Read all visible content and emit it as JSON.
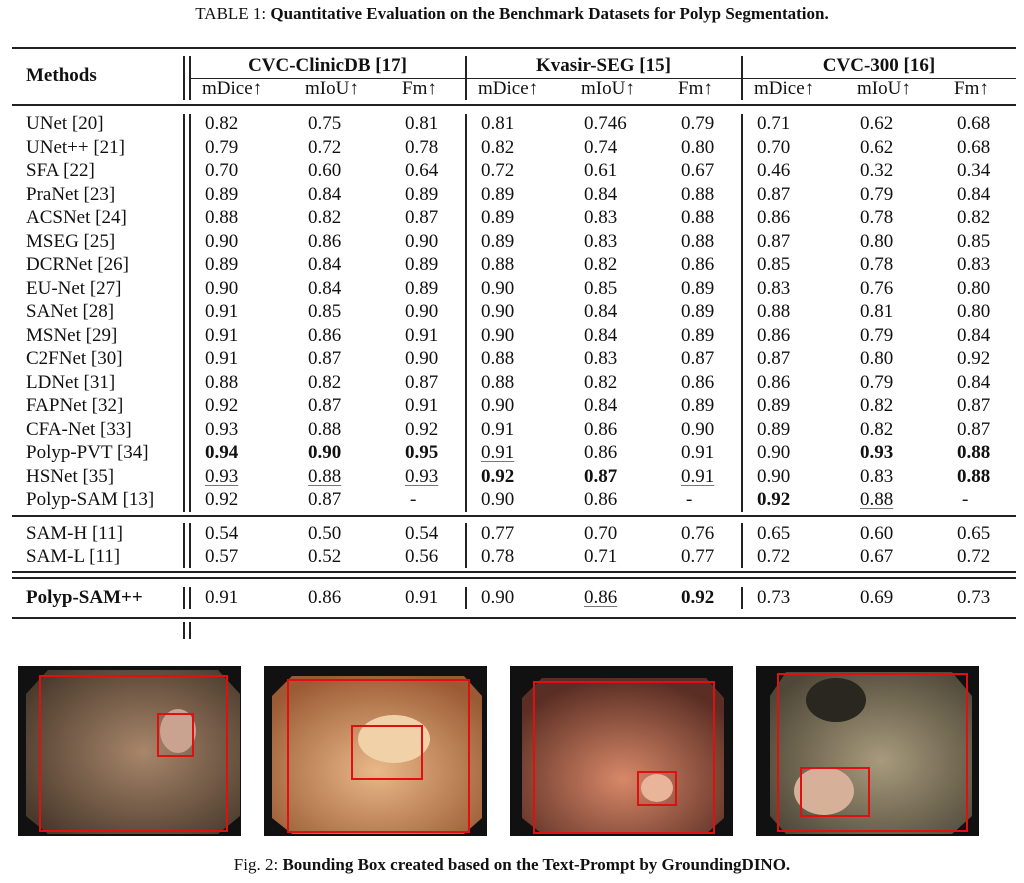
{
  "table": {
    "caption_prefix": "TABLE 1:",
    "caption_title": "Quantitative Evaluation on the Benchmark Datasets for Polyp Segmentation.",
    "methods_header": "Methods",
    "groups": [
      "CVC-ClinicDB [17]",
      "Kvasir-SEG [15]",
      "CVC-300 [16]"
    ],
    "metrics": [
      "mDice↑",
      "mIoU↑",
      "Fm↑"
    ],
    "rows": [
      {
        "method": "UNet [20]",
        "values": [
          "0.82",
          "0.75",
          "0.81",
          "0.81",
          "0.746",
          "0.79",
          "0.71",
          "0.62",
          "0.68"
        ],
        "style": [
          "",
          "",
          "",
          "",
          "",
          "",
          "",
          "",
          ""
        ]
      },
      {
        "method": "UNet++ [21]",
        "values": [
          "0.79",
          "0.72",
          "0.78",
          "0.82",
          "0.74",
          "0.80",
          "0.70",
          "0.62",
          "0.68"
        ],
        "style": [
          "",
          "",
          "",
          "",
          "",
          "",
          "",
          "",
          ""
        ]
      },
      {
        "method": "SFA [22]",
        "values": [
          "0.70",
          "0.60",
          "0.64",
          "0.72",
          "0.61",
          "0.67",
          "0.46",
          "0.32",
          "0.34"
        ],
        "style": [
          "",
          "",
          "",
          "",
          "",
          "",
          "",
          "",
          ""
        ]
      },
      {
        "method": "PraNet [23]",
        "values": [
          "0.89",
          "0.84",
          "0.89",
          "0.89",
          "0.84",
          "0.88",
          "0.87",
          "0.79",
          "0.84"
        ],
        "style": [
          "",
          "",
          "",
          "",
          "",
          "",
          "",
          "",
          ""
        ]
      },
      {
        "method": "ACSNet [24]",
        "values": [
          "0.88",
          "0.82",
          "0.87",
          "0.89",
          "0.83",
          "0.88",
          "0.86",
          "0.78",
          "0.82"
        ],
        "style": [
          "",
          "",
          "",
          "",
          "",
          "",
          "",
          "",
          ""
        ]
      },
      {
        "method": "MSEG [25]",
        "values": [
          "0.90",
          "0.86",
          "0.90",
          "0.89",
          "0.83",
          "0.88",
          "0.87",
          "0.80",
          "0.85"
        ],
        "style": [
          "",
          "",
          "",
          "",
          "",
          "",
          "",
          "",
          ""
        ]
      },
      {
        "method": "DCRNet [26]",
        "values": [
          "0.89",
          "0.84",
          "0.89",
          "0.88",
          "0.82",
          "0.86",
          "0.85",
          "0.78",
          "0.83"
        ],
        "style": [
          "",
          "",
          "",
          "",
          "",
          "",
          "",
          "",
          ""
        ]
      },
      {
        "method": "EU-Net [27]",
        "values": [
          "0.90",
          "0.84",
          "0.89",
          "0.90",
          "0.85",
          "0.89",
          "0.83",
          "0.76",
          "0.80"
        ],
        "style": [
          "",
          "",
          "",
          "",
          "",
          "",
          "",
          "",
          ""
        ]
      },
      {
        "method": "SANet [28]",
        "values": [
          "0.91",
          "0.85",
          "0.90",
          "0.90",
          "0.84",
          "0.89",
          "0.88",
          "0.81",
          "0.80"
        ],
        "style": [
          "",
          "",
          "",
          "",
          "",
          "",
          "",
          "",
          ""
        ]
      },
      {
        "method": "MSNet [29]",
        "values": [
          "0.91",
          "0.86",
          "0.91",
          "0.90",
          "0.84",
          "0.89",
          "0.86",
          "0.79",
          "0.84"
        ],
        "style": [
          "",
          "",
          "",
          "",
          "",
          "",
          "",
          "",
          ""
        ]
      },
      {
        "method": "C2FNet [30]",
        "values": [
          "0.91",
          "0.87",
          "0.90",
          "0.88",
          "0.83",
          "0.87",
          "0.87",
          "0.80",
          "0.92"
        ],
        "style": [
          "",
          "",
          "",
          "",
          "",
          "",
          "",
          "",
          ""
        ]
      },
      {
        "method": "LDNet [31]",
        "values": [
          "0.88",
          "0.82",
          "0.87",
          "0.88",
          "0.82",
          "0.86",
          "0.86",
          "0.79",
          "0.84"
        ],
        "style": [
          "",
          "",
          "",
          "",
          "",
          "",
          "",
          "",
          ""
        ]
      },
      {
        "method": "FAPNet [32]",
        "values": [
          "0.92",
          "0.87",
          "0.91",
          "0.90",
          "0.84",
          "0.89",
          "0.89",
          "0.82",
          "0.87"
        ],
        "style": [
          "",
          "",
          "",
          "",
          "",
          "",
          "",
          "",
          ""
        ]
      },
      {
        "method": "CFA-Net [33]",
        "values": [
          "0.93",
          "0.88",
          "0.92",
          "0.91",
          "0.86",
          "0.90",
          "0.89",
          "0.82",
          "0.87"
        ],
        "style": [
          "",
          "",
          "",
          "",
          "",
          "",
          "",
          "",
          ""
        ]
      },
      {
        "method": "Polyp-PVT [34]",
        "values": [
          "0.94",
          "0.90",
          "0.95",
          "0.91",
          "0.86",
          "0.91",
          "0.90",
          "0.93",
          "0.88"
        ],
        "style": [
          "b",
          "b",
          "b",
          "u",
          "",
          "",
          "",
          "b",
          "b"
        ]
      },
      {
        "method": "HSNet [35]",
        "values": [
          "0.93",
          "0.88",
          "0.93",
          "0.92",
          "0.87",
          "0.91",
          "0.90",
          "0.83",
          "0.88"
        ],
        "style": [
          "u",
          "u",
          "u",
          "b",
          "b",
          "u",
          "",
          "",
          "b"
        ]
      },
      {
        "method": "Polyp-SAM [13]",
        "values": [
          "0.92",
          "0.87",
          "-",
          "0.90",
          "0.86",
          "-",
          "0.92",
          "0.88",
          "-"
        ],
        "style": [
          "",
          "",
          "",
          "",
          "",
          "",
          "b",
          "u",
          ""
        ]
      },
      {
        "method": "SAM-H [11]",
        "values": [
          "0.54",
          "0.50",
          "0.54",
          "0.77",
          "0.70",
          "0.76",
          "0.65",
          "0.60",
          "0.65"
        ],
        "style": [
          "",
          "",
          "",
          "",
          "",
          "",
          "",
          "",
          ""
        ]
      },
      {
        "method": "SAM-L [11]",
        "values": [
          "0.57",
          "0.52",
          "0.56",
          "0.78",
          "0.71",
          "0.77",
          "0.72",
          "0.67",
          "0.72"
        ],
        "style": [
          "",
          "",
          "",
          "",
          "",
          "",
          "",
          "",
          ""
        ]
      },
      {
        "method": "Polyp-SAM++",
        "values": [
          "0.91",
          "0.86",
          "0.91",
          "0.90",
          "0.86",
          "0.92",
          "0.73",
          "0.69",
          "0.73"
        ],
        "style": [
          "",
          "",
          "",
          "",
          "u",
          "b",
          "",
          "",
          ""
        ],
        "bold_method": true
      }
    ]
  },
  "figure": {
    "caption_prefix": "Fig. 2:",
    "caption_title": "Bounding Box created based on the Text-Prompt by GroundingDINO.",
    "box_color": "#e01010",
    "images": [
      {
        "name": "endoscopy-image-1",
        "tone": "#7a6450"
      },
      {
        "name": "endoscopy-image-2",
        "tone": "#c98a5c"
      },
      {
        "name": "endoscopy-image-3",
        "tone": "#b8664e"
      },
      {
        "name": "endoscopy-image-4",
        "tone": "#857a60"
      }
    ]
  }
}
